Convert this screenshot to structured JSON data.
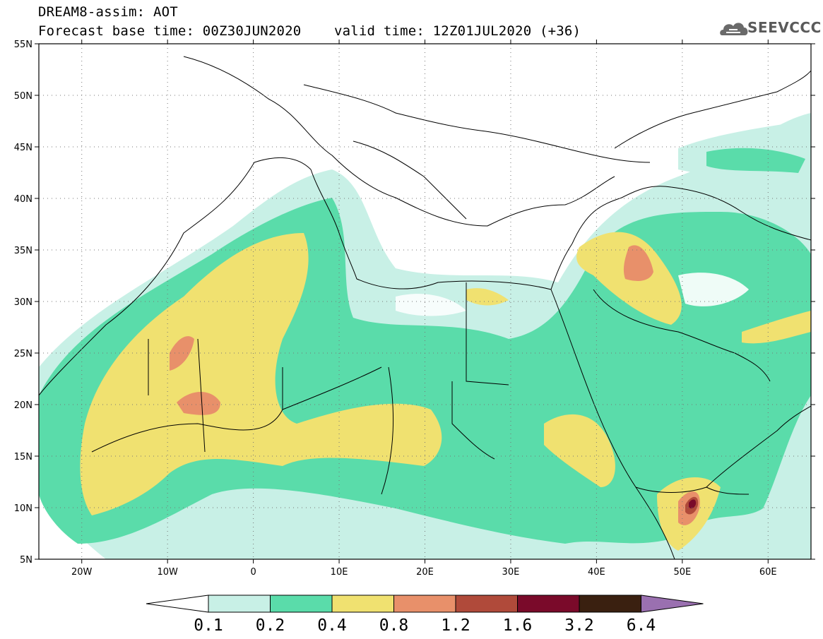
{
  "header": {
    "title_line1": "DREAM8-assim: AOT",
    "title_line2": "Forecast base time: 00Z30JUN2020    valid time: 12Z01JUL2020 (+36)"
  },
  "logo": {
    "icon": "cloud-icon",
    "text": "SEEVCCC",
    "color": "#5a5a5a"
  },
  "map": {
    "lat_labels": [
      "55N",
      "50N",
      "45N",
      "40N",
      "35N",
      "30N",
      "25N",
      "20N",
      "15N",
      "10N",
      "5N"
    ],
    "lon_labels": [
      "20W",
      "10W",
      "0",
      "10E",
      "20E",
      "30E",
      "40E",
      "50E",
      "60E"
    ],
    "lon_range": [
      -25,
      65
    ],
    "lat_range": [
      5,
      55
    ],
    "grid": "dotted"
  },
  "colorbar": {
    "labels": [
      "0.1",
      "0.2",
      "0.4",
      "0.8",
      "1.2",
      "1.6",
      "3.2",
      "6.4"
    ],
    "colors": [
      "#ffffff",
      "#c8f0e6",
      "#5adcaa",
      "#f0e170",
      "#e8906a",
      "#b04a3a",
      "#7a0a2a",
      "#3a2010",
      "#9a70b0"
    ]
  }
}
